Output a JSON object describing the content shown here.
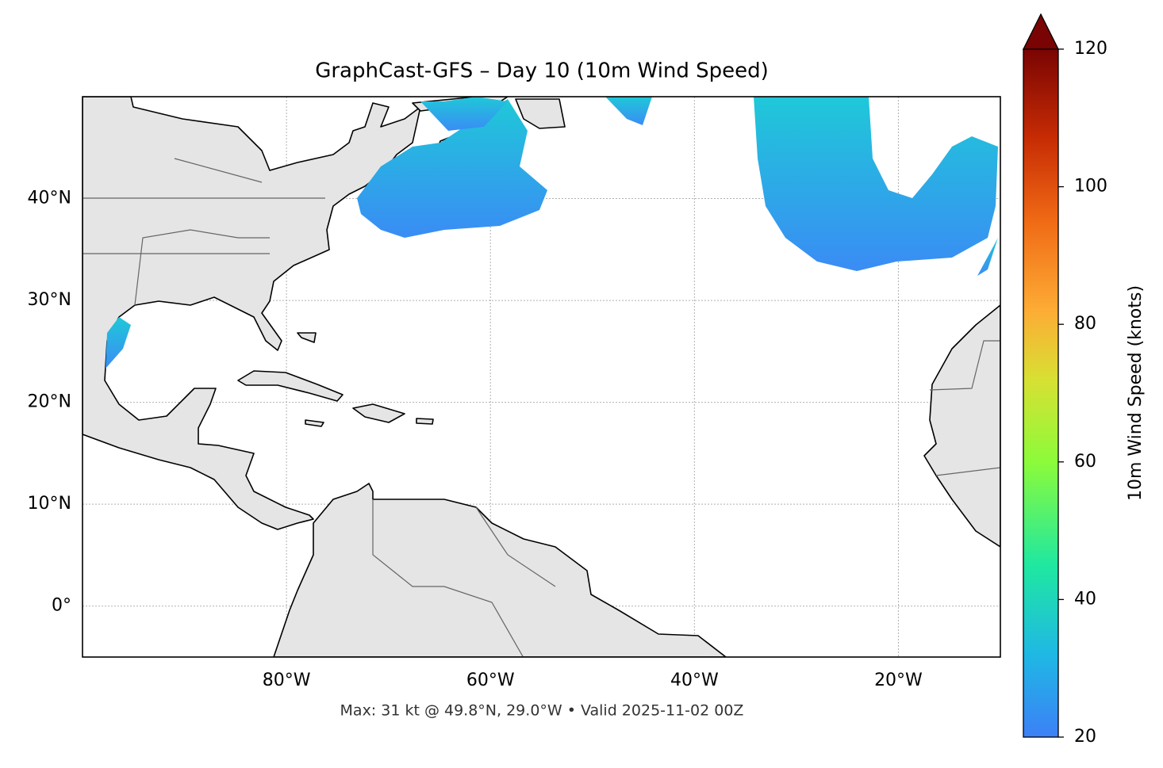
{
  "chart_data": {
    "type": "map",
    "title": "GraphCast-GFS – Day 10 (10m Wind Speed)",
    "footer": "Max: 31 kt @ 49.8°N, 29.0°W • Valid 2025-11-02 00Z",
    "xlim": [
      -100,
      -10
    ],
    "ylim": [
      -5,
      50
    ],
    "xticks": [
      {
        "value": -80,
        "label": "80°W"
      },
      {
        "value": -60,
        "label": "60°W"
      },
      {
        "value": -40,
        "label": "40°W"
      },
      {
        "value": -20,
        "label": "20°W"
      }
    ],
    "yticks": [
      {
        "value": 0,
        "label": "0°"
      },
      {
        "value": 10,
        "label": "10°N"
      },
      {
        "value": 20,
        "label": "20°N"
      },
      {
        "value": 30,
        "label": "30°N"
      },
      {
        "value": 40,
        "label": "40°N"
      }
    ],
    "grid": true,
    "colorbar": {
      "label": "10m Wind Speed (knots)",
      "range": [
        20,
        120
      ],
      "ticks": [
        20,
        40,
        60,
        80,
        100,
        120
      ],
      "extend": "max"
    }
  }
}
